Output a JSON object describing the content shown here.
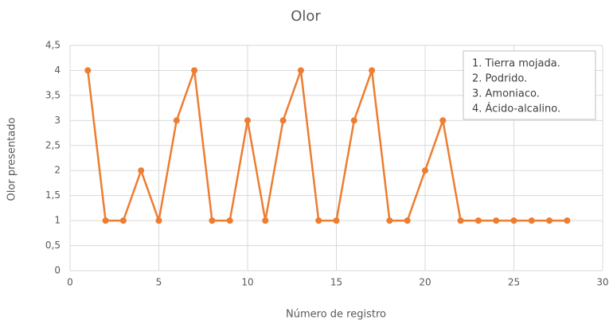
{
  "chart_data": {
    "type": "line",
    "title": "Olor",
    "x_label": "Número de registro",
    "y_label": "Olor presentado",
    "series": [
      {
        "name": "Olor",
        "color": "#ed7d31",
        "x": [
          1,
          2,
          3,
          4,
          5,
          6,
          7,
          8,
          9,
          10,
          11,
          12,
          13,
          14,
          15,
          16,
          17,
          18,
          19,
          20,
          21,
          22,
          23,
          24,
          25,
          26,
          27,
          28
        ],
        "values": [
          4,
          1,
          1,
          2,
          1,
          3,
          4,
          1,
          1,
          3,
          1,
          3,
          4,
          1,
          1,
          3,
          4,
          1,
          1,
          2,
          3,
          1,
          1,
          1,
          1,
          1,
          1,
          1
        ]
      }
    ],
    "xlim": [
      0,
      30
    ],
    "xticks": [
      0,
      5,
      10,
      15,
      20,
      25,
      30
    ],
    "ylim": [
      0,
      4.5
    ],
    "yticks": [
      0,
      {
        "value": 0.5,
        "label": "0,5"
      },
      1,
      {
        "value": 1.5,
        "label": "1,5"
      },
      2,
      {
        "value": 2.5,
        "label": "2,5"
      },
      3,
      {
        "value": 3.5,
        "label": "3,5"
      },
      4,
      {
        "value": 4.5,
        "label": "4,5"
      }
    ],
    "grid": true,
    "annotations": [
      "1. Tierra mojada.",
      "2. Podrido.",
      "3. Amoniaco.",
      "4. Ácido-alcalino."
    ]
  }
}
